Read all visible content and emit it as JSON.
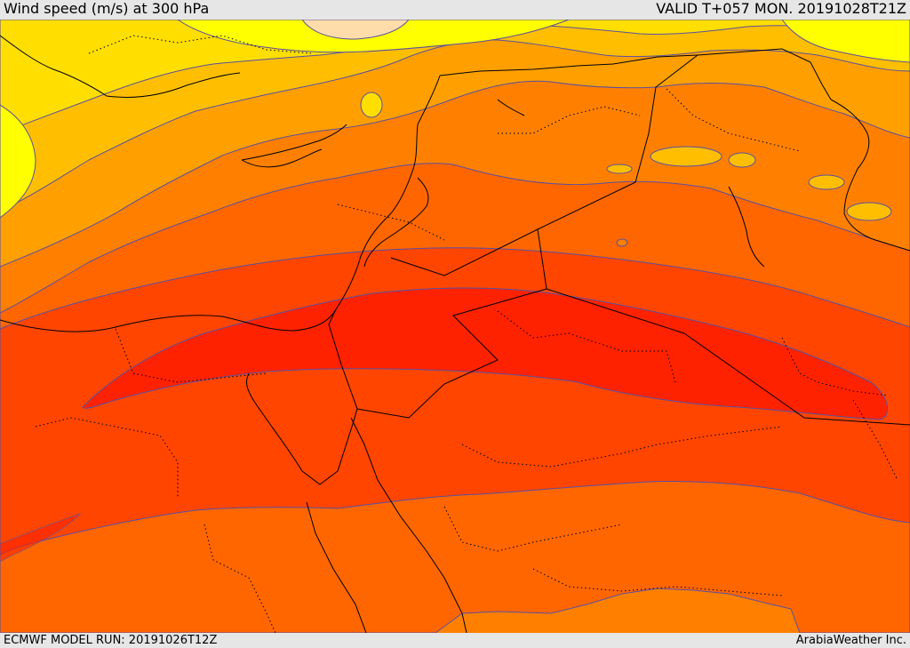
{
  "header": {
    "title": "Wind speed (m/s) at 300 hPa",
    "valid": "VALID T+057 MON. 20191028T21Z"
  },
  "footer": {
    "model_run": "ECMWF MODEL RUN: 20191026T12Z",
    "credit": "ArabiaWeather Inc."
  },
  "map": {
    "colors": {
      "band_yellow": "#ffff00",
      "band_gold": "#ffde00",
      "band_amber": "#ffbf00",
      "band_orange_light": "#ffa000",
      "band_orange": "#ff8000",
      "band_orange_dark": "#ff6600",
      "band_red_orange": "#ff4500",
      "band_jet_core": "#ff2200",
      "band_pale": "#ffddaa",
      "contour": "#5a4fa0",
      "boundary": "#000000"
    }
  }
}
